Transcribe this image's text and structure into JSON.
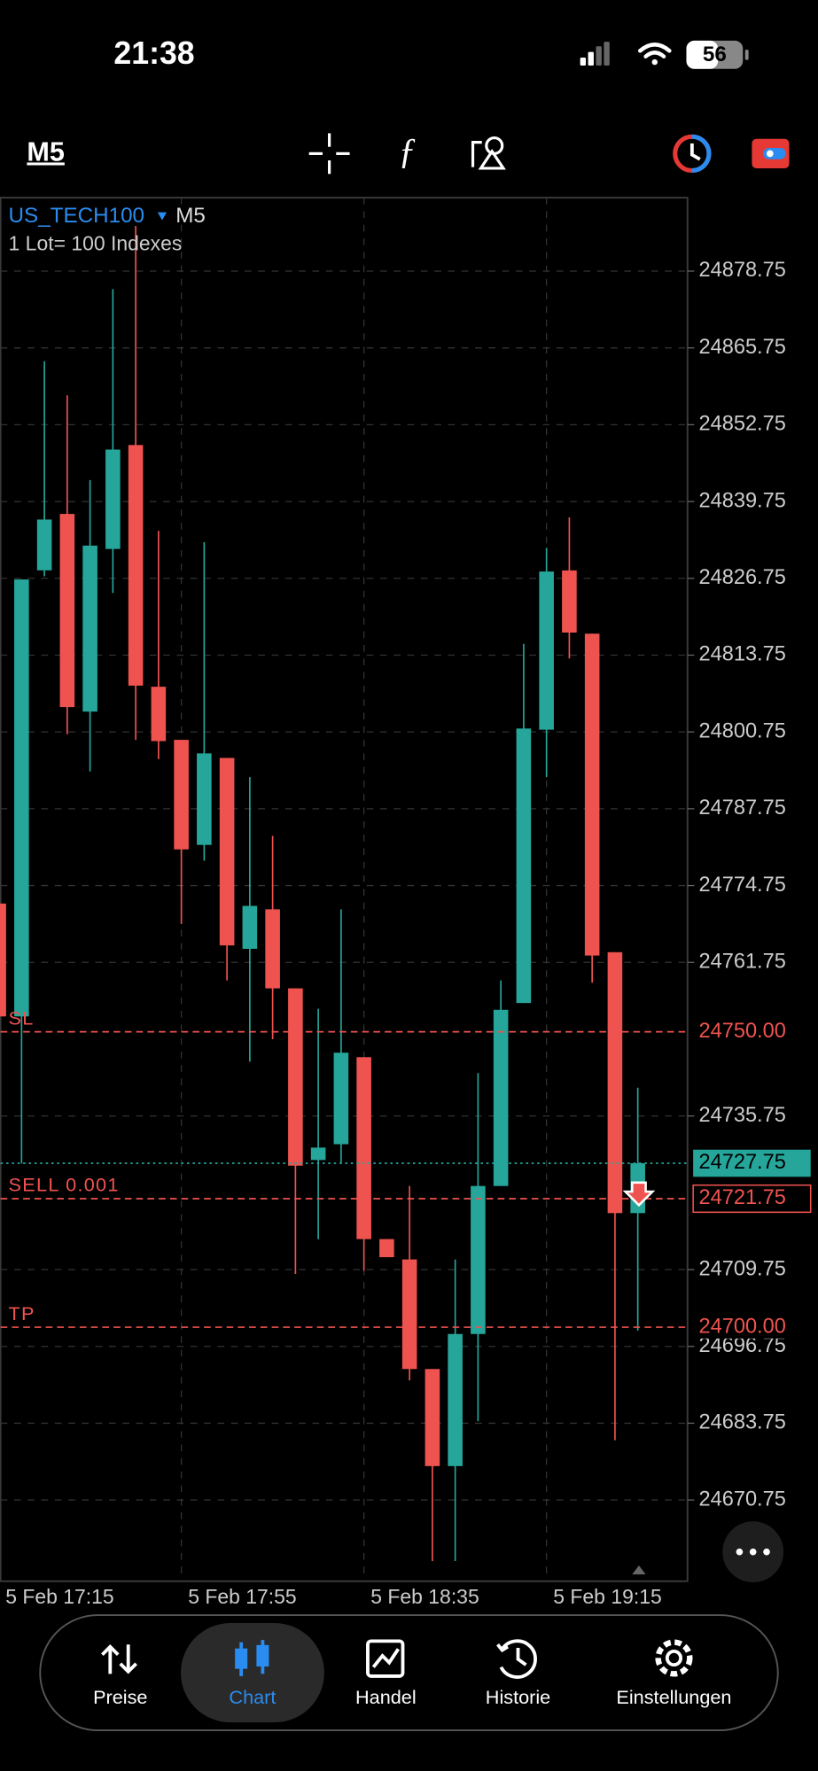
{
  "status_bar": {
    "time": "21:38",
    "battery": "56"
  },
  "toolbar": {
    "timeframe": "M5"
  },
  "chart_data": {
    "type": "candlestick",
    "symbol": "US_TECH100",
    "timeframe": "M5",
    "contract": "1 Lot= 100 Indexes",
    "categories": [
      "5 Feb 17:15",
      null,
      null,
      null,
      null,
      null,
      null,
      null,
      "5 Feb 17:55",
      null,
      null,
      null,
      null,
      null,
      null,
      null,
      "5 Feb 18:35",
      null,
      null,
      null,
      null,
      null,
      null,
      null,
      "5 Feb 19:15",
      null,
      null,
      null,
      null
    ],
    "open": [
      24771.7,
      24752.6,
      24828.1,
      24837.65,
      24804.19,
      24831.72,
      24849.31,
      24808.4,
      24799.41,
      24781.63,
      24796.35,
      24764.04,
      24770.73,
      24757.35,
      24728.3,
      24730.97,
      24745.7,
      24714.91,
      24711.47,
      24692.92,
      24676.49,
      24698.85,
      24723.9,
      24754.87,
      24801.13,
      24828.09,
      24817.38,
      24763.47,
      24719.31
    ],
    "high": [
      24771.7,
      24826.56,
      24863.5,
      24857.72,
      24843.38,
      24875.69,
      24886.4,
      24834.78,
      24799.41,
      24832.87,
      24796.35,
      24793.1,
      24783.16,
      24757.35,
      24753.9,
      24770.73,
      24745.7,
      24714.91,
      24723.9,
      24692.92,
      24711.47,
      24743.0,
      24758.69,
      24815.66,
      24831.91,
      24837.07,
      24817.38,
      24763.47,
      24740.53
    ],
    "low": [
      24752.6,
      24727.7,
      24827.1,
      24800.37,
      24794.06,
      24824.26,
      24799.41,
      24796.16,
      24768.25,
      24778.96,
      24758.69,
      24744.93,
      24748.75,
      24709.0,
      24714.9,
      24727.72,
      24709.56,
      24711.85,
      24691.0,
      24660.43,
      24660.43,
      24684.1,
      24723.9,
      24754.87,
      24793.1,
      24813.18,
      24758.3,
      24680.88,
      24699.43
    ],
    "close": [
      24752.6,
      24826.56,
      24836.7,
      24804.96,
      24832.29,
      24848.54,
      24808.59,
      24799.2,
      24780.87,
      24797.12,
      24764.62,
      24771.31,
      24757.35,
      24727.34,
      24730.4,
      24746.46,
      24714.91,
      24711.85,
      24692.92,
      24676.49,
      24698.85,
      24723.9,
      24753.72,
      24801.33,
      24827.9,
      24817.57,
      24762.9,
      24719.31,
      24727.75
    ],
    "up_color": "#26a69a",
    "down_color": "#ef5350",
    "ylim": [
      24657.0,
      24891.18
    ],
    "yticks": [
      24878.75,
      24865.75,
      24852.75,
      24839.75,
      24826.75,
      24813.75,
      24800.75,
      24787.75,
      24774.75,
      24761.75,
      24735.75,
      24709.75,
      24696.75,
      24683.75,
      24670.75
    ],
    "grid": true,
    "levels": [
      {
        "name": "SL",
        "value": 24750,
        "label": "24750.00",
        "color": "#ef5350",
        "style": "dashed"
      },
      {
        "value": 24727.75,
        "color": "#26a69a",
        "style": "dotted"
      },
      {
        "name": "SELL 0.001",
        "value": 24721.75,
        "color": "#ef5350",
        "style": "dashed"
      },
      {
        "name": "TP",
        "value": 24700,
        "label": "24700.00",
        "color": "#ef5350",
        "style": "dashed"
      }
    ]
  },
  "tabs": {
    "items": [
      "Preise",
      "Chart",
      "Handel",
      "Historie",
      "Einstellungen"
    ],
    "selected": 1
  }
}
